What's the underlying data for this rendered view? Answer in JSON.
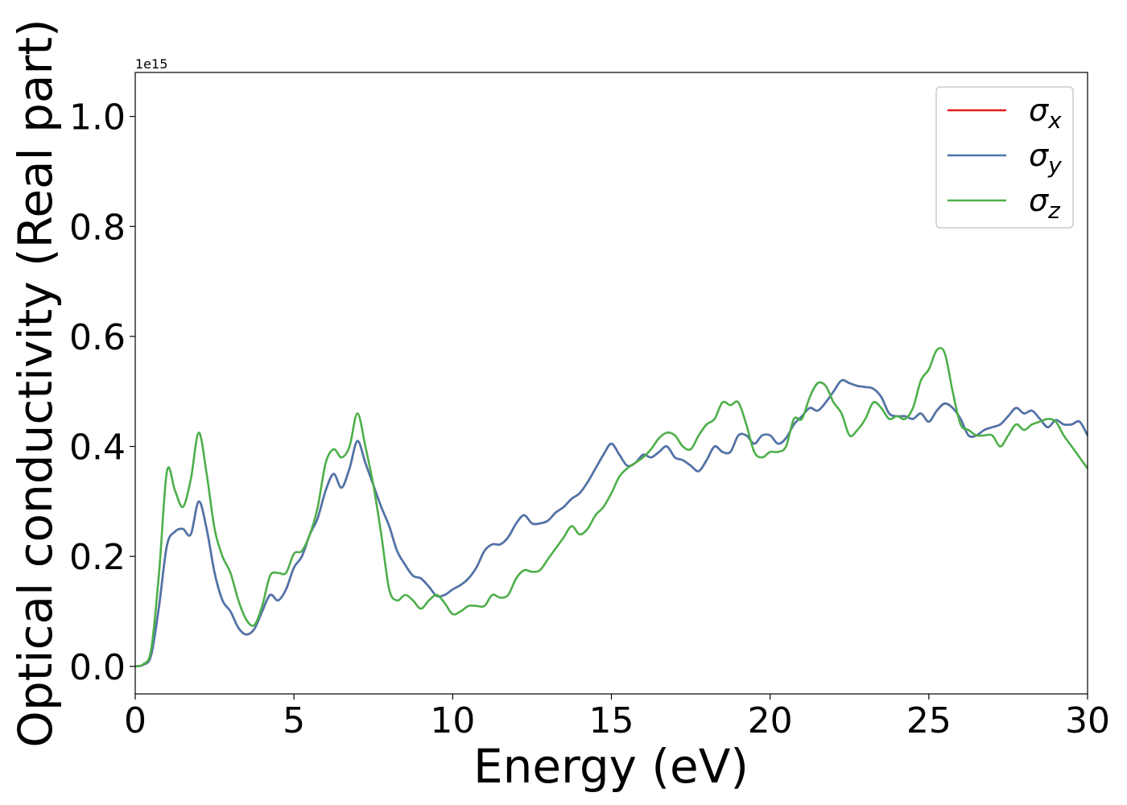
{
  "chart_data": {
    "type": "line",
    "xlabel": "Energy (eV)",
    "ylabel": "Optical conductivity (Real part)",
    "y_offset_text": "1e15",
    "xlim": [
      0,
      30
    ],
    "ylim": [
      -0.05,
      1.08
    ],
    "xticks": [
      "0",
      "5",
      "10",
      "15",
      "20",
      "25",
      "30"
    ],
    "yticks": [
      "0.0",
      "0.2",
      "0.4",
      "0.6",
      "0.8",
      "1.0"
    ],
    "grid": false,
    "legend_position": "top-right",
    "x": [
      0,
      0.25,
      0.5,
      0.75,
      1.0,
      1.25,
      1.5,
      1.75,
      2.0,
      2.25,
      2.5,
      2.75,
      3.0,
      3.25,
      3.5,
      3.75,
      4.0,
      4.25,
      4.5,
      4.75,
      5.0,
      5.25,
      5.5,
      5.75,
      6.0,
      6.25,
      6.5,
      6.75,
      7.0,
      7.25,
      7.5,
      7.75,
      8.0,
      8.25,
      8.5,
      8.75,
      9.0,
      9.25,
      9.5,
      9.75,
      10.0,
      10.25,
      10.5,
      10.75,
      11.0,
      11.25,
      11.5,
      11.75,
      12.0,
      12.25,
      12.5,
      12.75,
      13.0,
      13.25,
      13.5,
      13.75,
      14.0,
      14.25,
      14.5,
      14.75,
      15.0,
      15.25,
      15.5,
      15.75,
      16.0,
      16.25,
      16.5,
      16.75,
      17.0,
      17.25,
      17.5,
      17.75,
      18.0,
      18.25,
      18.5,
      18.75,
      19.0,
      19.25,
      19.5,
      19.75,
      20.0,
      20.25,
      20.5,
      20.75,
      21.0,
      21.25,
      21.5,
      21.75,
      22.0,
      22.25,
      22.5,
      22.75,
      23.0,
      23.25,
      23.5,
      23.75,
      24.0,
      24.25,
      24.5,
      24.75,
      25.0,
      25.25,
      25.5,
      25.75,
      26.0,
      26.25,
      26.5,
      26.75,
      27.0,
      27.25,
      27.5,
      27.75,
      28.0,
      28.25,
      28.5,
      28.75,
      29.0,
      29.25,
      29.5,
      29.75,
      30.0
    ],
    "series": [
      {
        "name": "σx",
        "sub": "x",
        "color": "#e41a1c",
        "values": [
          0.0,
          0.003,
          0.02,
          0.11,
          0.22,
          0.245,
          0.25,
          0.24,
          0.3,
          0.25,
          0.17,
          0.12,
          0.1,
          0.07,
          0.058,
          0.068,
          0.1,
          0.13,
          0.12,
          0.14,
          0.18,
          0.2,
          0.24,
          0.27,
          0.32,
          0.35,
          0.325,
          0.36,
          0.41,
          0.37,
          0.33,
          0.29,
          0.255,
          0.21,
          0.185,
          0.165,
          0.16,
          0.145,
          0.128,
          0.13,
          0.14,
          0.148,
          0.16,
          0.18,
          0.21,
          0.222,
          0.222,
          0.235,
          0.26,
          0.275,
          0.26,
          0.26,
          0.265,
          0.28,
          0.29,
          0.305,
          0.315,
          0.335,
          0.36,
          0.385,
          0.405,
          0.385,
          0.365,
          0.37,
          0.385,
          0.38,
          0.39,
          0.4,
          0.38,
          0.375,
          0.365,
          0.355,
          0.375,
          0.4,
          0.39,
          0.39,
          0.42,
          0.42,
          0.405,
          0.42,
          0.42,
          0.405,
          0.415,
          0.44,
          0.455,
          0.47,
          0.465,
          0.48,
          0.5,
          0.52,
          0.515,
          0.51,
          0.508,
          0.505,
          0.49,
          0.46,
          0.455,
          0.455,
          0.45,
          0.46,
          0.445,
          0.465,
          0.478,
          0.47,
          0.45,
          0.42,
          0.42,
          0.43,
          0.435,
          0.44,
          0.455,
          0.47,
          0.46,
          0.465,
          0.45,
          0.435,
          0.448,
          0.44,
          0.44,
          0.445,
          0.42
        ]
      },
      {
        "name": "σy",
        "sub": "y",
        "color": "#4a76ac",
        "values": [
          0.0,
          0.003,
          0.02,
          0.11,
          0.22,
          0.245,
          0.25,
          0.24,
          0.3,
          0.25,
          0.17,
          0.12,
          0.1,
          0.07,
          0.058,
          0.068,
          0.1,
          0.13,
          0.12,
          0.14,
          0.18,
          0.2,
          0.24,
          0.27,
          0.32,
          0.35,
          0.325,
          0.36,
          0.41,
          0.37,
          0.33,
          0.29,
          0.255,
          0.21,
          0.185,
          0.165,
          0.16,
          0.145,
          0.128,
          0.13,
          0.14,
          0.148,
          0.16,
          0.18,
          0.21,
          0.222,
          0.222,
          0.235,
          0.26,
          0.275,
          0.26,
          0.26,
          0.265,
          0.28,
          0.29,
          0.305,
          0.315,
          0.335,
          0.36,
          0.385,
          0.405,
          0.385,
          0.365,
          0.37,
          0.385,
          0.38,
          0.39,
          0.4,
          0.38,
          0.375,
          0.365,
          0.355,
          0.375,
          0.4,
          0.39,
          0.39,
          0.42,
          0.42,
          0.405,
          0.42,
          0.42,
          0.405,
          0.415,
          0.44,
          0.455,
          0.47,
          0.465,
          0.48,
          0.5,
          0.52,
          0.515,
          0.51,
          0.508,
          0.505,
          0.49,
          0.46,
          0.455,
          0.455,
          0.45,
          0.46,
          0.445,
          0.465,
          0.478,
          0.47,
          0.45,
          0.42,
          0.42,
          0.43,
          0.435,
          0.44,
          0.455,
          0.47,
          0.46,
          0.465,
          0.45,
          0.435,
          0.448,
          0.44,
          0.44,
          0.445,
          0.42
        ]
      },
      {
        "name": "σz",
        "sub": "z",
        "color": "#4daf4a",
        "values": [
          0.0,
          0.004,
          0.03,
          0.17,
          0.355,
          0.32,
          0.29,
          0.34,
          0.425,
          0.35,
          0.25,
          0.2,
          0.17,
          0.12,
          0.085,
          0.075,
          0.11,
          0.165,
          0.17,
          0.17,
          0.205,
          0.21,
          0.24,
          0.29,
          0.37,
          0.395,
          0.38,
          0.4,
          0.46,
          0.4,
          0.33,
          0.24,
          0.14,
          0.12,
          0.13,
          0.12,
          0.105,
          0.12,
          0.13,
          0.115,
          0.095,
          0.1,
          0.11,
          0.11,
          0.11,
          0.13,
          0.125,
          0.13,
          0.16,
          0.175,
          0.172,
          0.175,
          0.195,
          0.215,
          0.235,
          0.255,
          0.24,
          0.25,
          0.275,
          0.29,
          0.315,
          0.345,
          0.36,
          0.37,
          0.38,
          0.395,
          0.415,
          0.425,
          0.42,
          0.4,
          0.395,
          0.42,
          0.44,
          0.45,
          0.48,
          0.475,
          0.48,
          0.44,
          0.39,
          0.38,
          0.39,
          0.39,
          0.4,
          0.45,
          0.45,
          0.49,
          0.515,
          0.51,
          0.48,
          0.46,
          0.42,
          0.43,
          0.45,
          0.48,
          0.47,
          0.45,
          0.455,
          0.45,
          0.47,
          0.52,
          0.54,
          0.575,
          0.57,
          0.5,
          0.44,
          0.43,
          0.42,
          0.42,
          0.42,
          0.4,
          0.42,
          0.44,
          0.43,
          0.44,
          0.445,
          0.45,
          0.445,
          0.42,
          0.4,
          0.38,
          0.36
        ]
      }
    ]
  }
}
